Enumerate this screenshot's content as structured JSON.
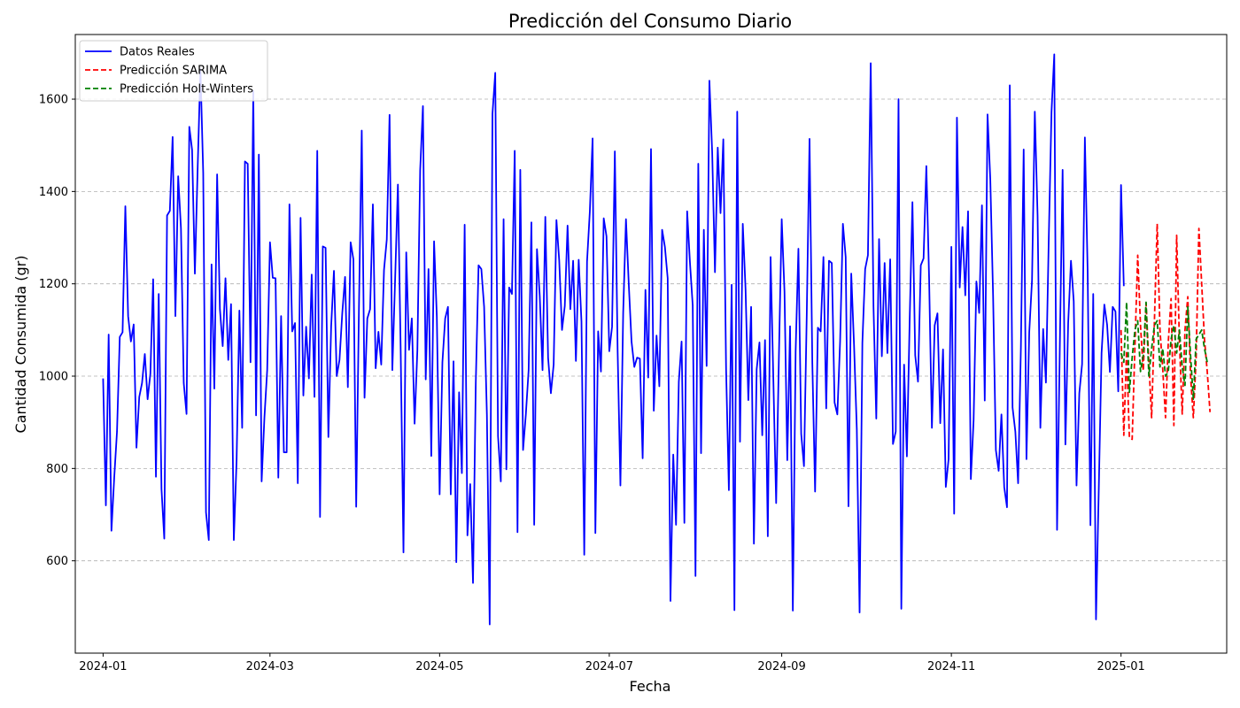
{
  "chart_data": {
    "type": "line",
    "title": "Predicción del Consumo Diario",
    "xlabel": "Fecha",
    "ylabel": "Cantidad Consumida (gr)",
    "x_range": [
      "2023-12-22",
      "2025-02-08"
    ],
    "ylim": [
      400,
      1740
    ],
    "grid": {
      "y": true,
      "x": false,
      "style": "dashed"
    },
    "legend_position": "top-left",
    "x_ticks": [
      "2024-01",
      "2024-03",
      "2024-05",
      "2024-07",
      "2024-09",
      "2024-11",
      "2025-01"
    ],
    "x_tick_dates": [
      "2024-01-01",
      "2024-03-01",
      "2024-05-01",
      "2024-07-01",
      "2024-09-01",
      "2024-11-01",
      "2025-01-01"
    ],
    "y_ticks": [
      600,
      800,
      1000,
      1200,
      1400,
      1600
    ],
    "series": [
      {
        "name": "Datos Reales",
        "color": "#0000ff",
        "style": "solid",
        "start": "2024-01-01",
        "values": [
          995,
          720,
          1090,
          665,
          780,
          880,
          1085,
          1095,
          1368,
          1130,
          1075,
          1112,
          845,
          955,
          985,
          1048,
          950,
          1005,
          1210,
          782,
          1178,
          755,
          648,
          1348,
          1358,
          1518,
          1130,
          1433,
          1320,
          985,
          918,
          1540,
          1490,
          1222,
          1450,
          1665,
          1440,
          705,
          645,
          1242,
          973,
          1437,
          1145,
          1065,
          1212,
          1035,
          1156,
          645,
          818,
          1142,
          888,
          1465,
          1460,
          1030,
          1618,
          915,
          1480,
          772,
          910,
          1013,
          1290,
          1213,
          1212,
          780,
          1130,
          835,
          835,
          1372,
          1097,
          1115,
          768,
          1343,
          958,
          1107,
          995,
          1220,
          955,
          1488,
          695,
          1281,
          1278,
          868,
          1108,
          1228,
          1000,
          1035,
          1137,
          1215,
          976,
          1290,
          1253,
          717,
          1150,
          1532,
          953,
          1125,
          1145,
          1372,
          1017,
          1096,
          1025,
          1230,
          1296,
          1566,
          1013,
          1210,
          1415,
          1055,
          618,
          1268,
          1057,
          1125,
          897,
          1056,
          1446,
          1585,
          993,
          1232,
          827,
          1292,
          1128,
          744,
          1030,
          1125,
          1150,
          744,
          1032,
          597,
          965,
          790,
          1328,
          655,
          766,
          552,
          985,
          1240,
          1232,
          1150,
          916,
          462,
          1568,
          1657,
          870,
          772,
          1340,
          798,
          1192,
          1178,
          1488,
          662,
          1447,
          840,
          917,
          1013,
          1333,
          678,
          1275,
          1174,
          1013,
          1345,
          1040,
          963,
          1025,
          1338,
          1250,
          1100,
          1152,
          1326,
          1145,
          1250,
          1033,
          1252,
          1118,
          613,
          1248,
          1356,
          1515,
          660,
          1097,
          1010,
          1342,
          1303,
          1054,
          1107,
          1487,
          1055,
          763,
          1138,
          1340,
          1200,
          1075,
          1020,
          1040,
          1038,
          822,
          1187,
          997,
          1492,
          925,
          1088,
          978,
          1317,
          1280,
          1212,
          513,
          830,
          678,
          988,
          1075,
          682,
          1357,
          1247,
          1153,
          567,
          1460,
          833,
          1317,
          1022,
          1640,
          1485,
          1225,
          1495,
          1353,
          1513,
          1015,
          753,
          1198,
          493,
          1573,
          858,
          1330,
          1188,
          948,
          1150,
          637,
          1015,
          1073,
          872,
          1078,
          653,
          1258,
          991,
          725,
          1045,
          1340,
          1183,
          818,
          1108,
          492,
          1053,
          1276,
          875,
          805,
          1133,
          1514,
          1030,
          750,
          1105,
          1097,
          1258,
          930,
          1250,
          1245,
          943,
          917,
          1076,
          1330,
          1258,
          718,
          1222,
          1068,
          885,
          488,
          1072,
          1232,
          1262,
          1678,
          1150,
          908,
          1297,
          1043,
          1245,
          1050,
          1253,
          853,
          880,
          1600,
          496,
          1025,
          826,
          1120,
          1377,
          1045,
          988,
          1240,
          1255,
          1455,
          1210,
          888,
          1110,
          1136,
          898,
          1058,
          760,
          820,
          1280,
          702,
          1560,
          1192,
          1323,
          1175,
          1357,
          777,
          905,
          1205,
          1137,
          1370,
          947,
          1567,
          1426,
          1175,
          840,
          795,
          917,
          760,
          716,
          1630,
          932,
          880,
          768,
          1063,
          1491,
          820,
          1095,
          1208,
          1573,
          1348,
          888,
          1102,
          986,
          1292,
          1572,
          1697,
          667,
          1066,
          1447,
          852,
          1115,
          1250,
          1162,
          763,
          963,
          1026,
          1517,
          1226,
          677,
          1178,
          473,
          756,
          1050,
          1155,
          1111,
          1009,
          1150,
          1140,
          967,
          1414,
          1195
        ]
      },
      {
        "name": "Predicción SARIMA",
        "color": "#ff0000",
        "style": "dashed",
        "start": "2025-01-01",
        "values": [
          1100,
          872,
          1055,
          868,
          863,
          1065,
          1262,
          1110,
          1012,
          1158,
          1030,
          910,
          1118,
          1330,
          1100,
          1015,
          910,
          1075,
          1168,
          893,
          1305,
          1075,
          918,
          1100,
          1172,
          1000,
          910,
          1040,
          1320,
          1200,
          1080,
          1010,
          922
        ]
      },
      {
        "name": "Predicción Holt-Winters",
        "color": "#008000",
        "style": "dashed",
        "start": "2025-01-01",
        "values": [
          1050,
          1030,
          1160,
          965,
          1040,
          1100,
          1120,
          1010,
          1045,
          1160,
          1000,
          1060,
          1110,
          1120,
          1020,
          1060,
          1000,
          1010,
          1080,
          1110,
          1050,
          1100,
          1020,
          980,
          1150,
          1045,
          950,
          1080,
          1090,
          1100,
          1060,
          1030
        ]
      }
    ]
  }
}
